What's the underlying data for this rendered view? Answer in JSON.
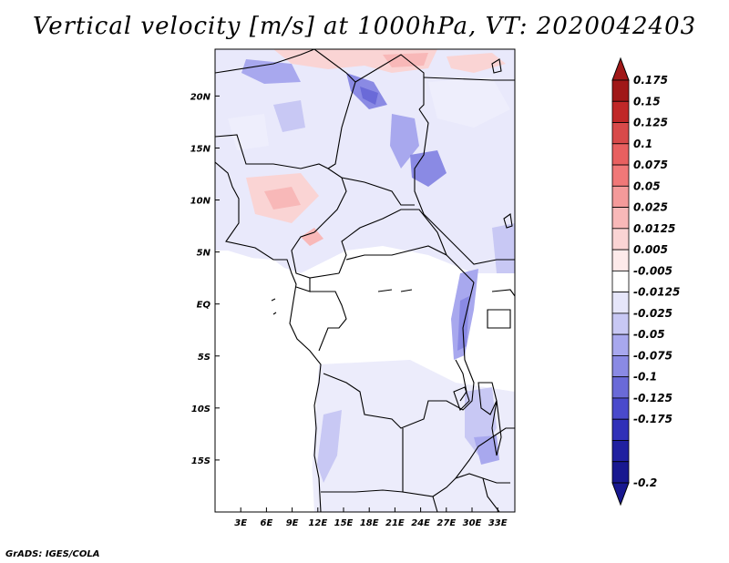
{
  "title": "Vertical velocity [m/s] at 1000hPa, VT: 2020042403",
  "footer": "GrADS: IGES/COLA",
  "map": {
    "lon_labels": [
      "3E",
      "6E",
      "9E",
      "12E",
      "15E",
      "18E",
      "21E",
      "24E",
      "27E",
      "30E",
      "33E"
    ],
    "lat_labels": [
      "20N",
      "15N",
      "10N",
      "5N",
      "EQ",
      "5S",
      "10S",
      "15S"
    ],
    "lon_range": [
      0,
      35
    ],
    "lat_range": [
      -20,
      24.5
    ],
    "lon_ticks": [
      3,
      6,
      9,
      12,
      15,
      18,
      21,
      24,
      27,
      30,
      33
    ],
    "lat_ticks": [
      20,
      15,
      10,
      5,
      0,
      -5,
      -10,
      -15
    ]
  },
  "colorbar": {
    "labels": [
      "0.175",
      "0.15",
      "0.125",
      "0.1",
      "0.075",
      "0.05",
      "0.025",
      "0.0125",
      "0.005",
      "-0.005",
      "-0.0125",
      "-0.025",
      "-0.05",
      "-0.075",
      "-0.1",
      "-0.125",
      "-0.175",
      "-0.2"
    ],
    "colors": [
      "#a01818",
      "#c02828",
      "#d84a4a",
      "#e86060",
      "#f07878",
      "#f49a9a",
      "#f8b8b8",
      "#fad4d4",
      "#fdeaea",
      "#ffffff",
      "#e6e6fa",
      "#c8c8f4",
      "#a8a8ee",
      "#8a8ae4",
      "#6a6ad8",
      "#4a4acc",
      "#3030b8",
      "#2020a0",
      "#181890"
    ],
    "top_color": "#a01818",
    "bottom_color": "#181890"
  }
}
